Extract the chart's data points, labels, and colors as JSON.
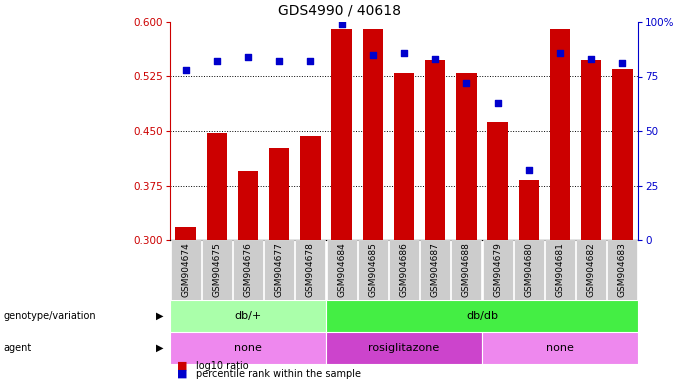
{
  "title": "GDS4990 / 40618",
  "samples": [
    "GSM904674",
    "GSM904675",
    "GSM904676",
    "GSM904677",
    "GSM904678",
    "GSM904684",
    "GSM904685",
    "GSM904686",
    "GSM904687",
    "GSM904688",
    "GSM904679",
    "GSM904680",
    "GSM904681",
    "GSM904682",
    "GSM904683"
  ],
  "log10_ratio": [
    0.318,
    0.447,
    0.395,
    0.427,
    0.443,
    0.59,
    0.59,
    0.53,
    0.548,
    0.53,
    0.462,
    0.382,
    0.591,
    0.548,
    0.535
  ],
  "percentile_rank": [
    78,
    82,
    84,
    82,
    82,
    99,
    85,
    86,
    83,
    72,
    63,
    32,
    86,
    83,
    81
  ],
  "ymin": 0.3,
  "ymax": 0.6,
  "yticks_left": [
    0.3,
    0.375,
    0.45,
    0.525,
    0.6
  ],
  "yticks_right": [
    0,
    25,
    50,
    75,
    100
  ],
  "bar_color": "#cc0000",
  "dot_color": "#0000cc",
  "genotype_groups": [
    {
      "label": "db/+",
      "start": 0,
      "end": 5,
      "color": "#aaffaa"
    },
    {
      "label": "db/db",
      "start": 5,
      "end": 15,
      "color": "#44ee44"
    }
  ],
  "agent_groups": [
    {
      "label": "none",
      "start": 0,
      "end": 5,
      "color": "#ee88ee"
    },
    {
      "label": "rosiglitazone",
      "start": 5,
      "end": 10,
      "color": "#cc44cc"
    },
    {
      "label": "none",
      "start": 10,
      "end": 15,
      "color": "#ee88ee"
    }
  ],
  "legend_bar_label": "log10 ratio",
  "legend_dot_label": "percentile rank within the sample",
  "bar_color_right": "#0000cc",
  "tick_fontsize": 6.5,
  "bar_width": 0.65,
  "tick_bg_color": "#cccccc"
}
